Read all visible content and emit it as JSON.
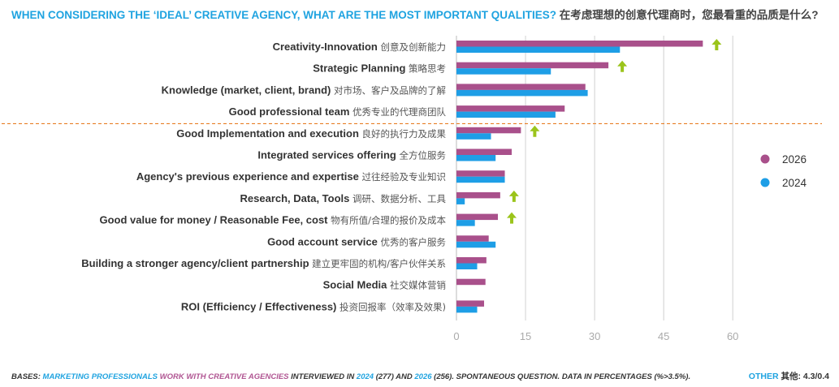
{
  "title": {
    "en": "WHEN CONSIDERING THE ‘IDEAL’ CREATIVE AGENCY, WHAT ARE THE MOST IMPORTANT QUALITIES?",
    "zh": "在考虑理想的创意代理商时，您最看重的品质是什么?"
  },
  "colors": {
    "s2026": "#a9508b",
    "s2024": "#1e9ee6",
    "arrow": "#9bc41b",
    "divider": "#e87e24",
    "grid": "#d0d0d0"
  },
  "chart_data": {
    "type": "bar",
    "orientation": "horizontal",
    "xlim": [
      0,
      60
    ],
    "xticks": [
      "0",
      "15",
      "30",
      "45",
      "60"
    ],
    "categories": [
      {
        "en": "Creativity-Innovation",
        "zh": "创意及创新能力",
        "v2026": 53.5,
        "v2024": 35.5,
        "up": true
      },
      {
        "en": "Strategic Planning",
        "zh": "策略思考",
        "v2026": 33,
        "v2024": 20.5,
        "up": true
      },
      {
        "en": "Knowledge (market, client, brand)",
        "zh": "对市场、客户及品牌的了解",
        "v2026": 28,
        "v2024": 28.5,
        "up": false
      },
      {
        "en": "Good professional team",
        "zh": "优秀专业的代理商团队",
        "v2026": 23.5,
        "v2024": 21.5,
        "up": false
      },
      {
        "en": "Good Implementation and execution",
        "zh": "良好的执行力及成果",
        "v2026": 14,
        "v2024": 7.5,
        "up": true
      },
      {
        "en": "Integrated services offering",
        "zh": "全方位服务",
        "v2026": 12,
        "v2024": 8.5,
        "up": false
      },
      {
        "en": "Agency's previous experience and expertise",
        "zh": "过往经验及专业知识",
        "v2026": 10.5,
        "v2024": 10.5,
        "up": false
      },
      {
        "en": "Research, Data, Tools",
        "zh": "调研、数据分析、工具",
        "v2026": 9.5,
        "v2024": 1.8,
        "up": true
      },
      {
        "en": "Good value for money / Reasonable Fee, cost",
        "zh": "物有所值/合理的报价及成本",
        "v2026": 9,
        "v2024": 4,
        "up": true
      },
      {
        "en": "Good account service",
        "zh": "优秀的客户服务",
        "v2026": 7,
        "v2024": 8.5,
        "up": false
      },
      {
        "en": "Building a stronger agency/client partnership",
        "zh": "建立更牢固的机构/客户伙伴关系",
        "v2026": 6.5,
        "v2024": 4.5,
        "up": false
      },
      {
        "en": "Social Media",
        "zh": "社交媒体营销",
        "v2026": 6.3,
        "v2024": null,
        "up": false
      },
      {
        "en": "ROI (Efficiency / Effectiveness)",
        "zh": "投资回报率（效率及效果)",
        "v2026": 6,
        "v2024": 4.5,
        "up": false
      }
    ],
    "legend": [
      {
        "name": "2026",
        "color": "#a9508b"
      },
      {
        "name": "2024",
        "color": "#1e9ee6"
      }
    ],
    "divider_after_index": 3
  },
  "footer": {
    "bases": "BASES:",
    "mp": "MARKETING PROFESSIONALS",
    "wca": "WORK WITH CREATIVE AGENCIES",
    "interviewed": "INTERVIEWED IN",
    "y2024": "2024",
    "n2024": "(277) AND",
    "y2026": "2026",
    "rest": "(256). SPONTANEOUS QUESTION. DATA IN PERCENTAGES (%>3.5%)."
  },
  "other": {
    "label": "OTHER",
    "zh": "其他:",
    "value": "4.3/0.4"
  }
}
